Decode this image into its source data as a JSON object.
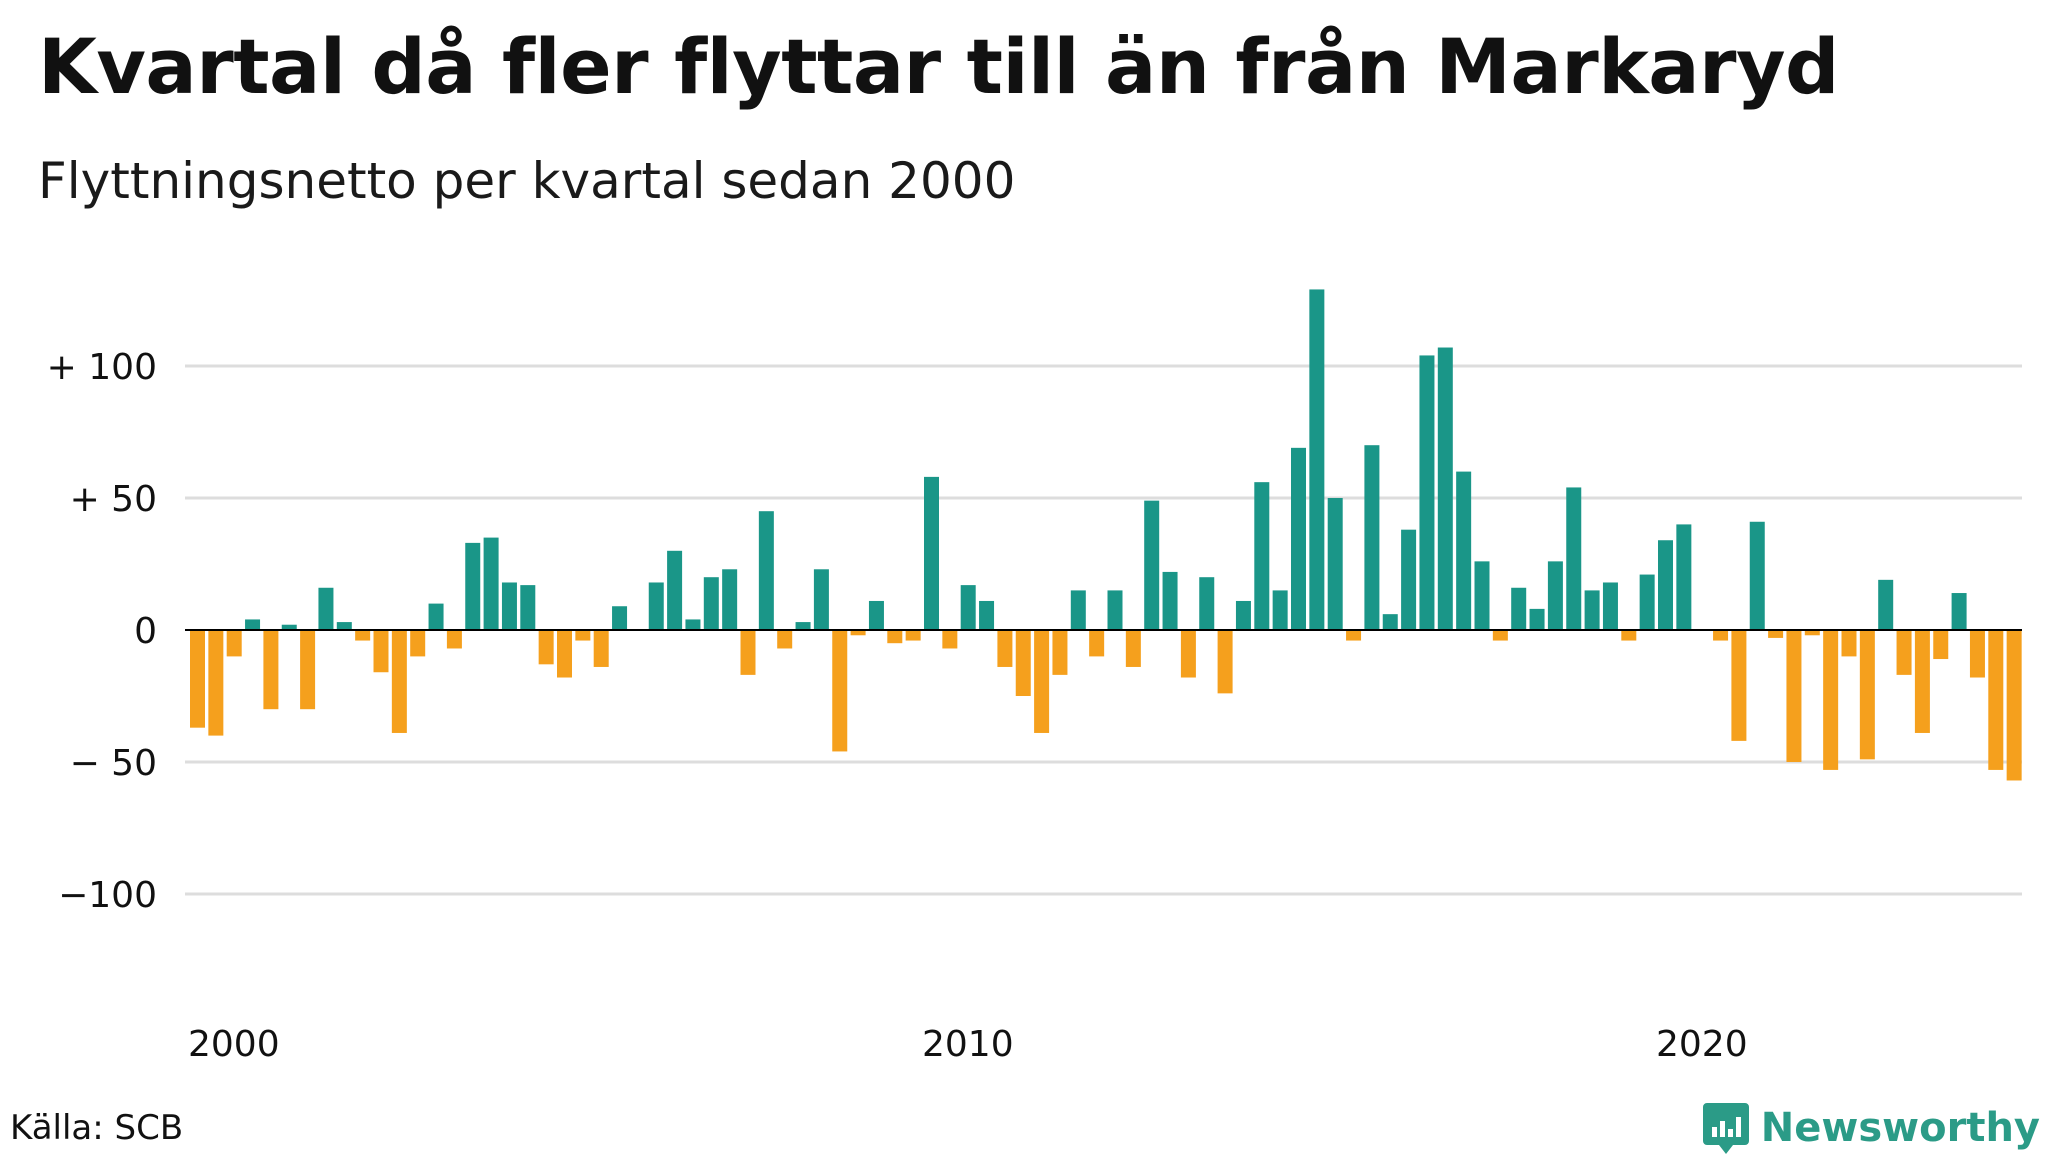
{
  "title": "Kvartal då fler flyttar till än från Markaryd",
  "subtitle": "Flyttningsnetto per kvartal sedan 2000",
  "source": "Källa: SCB",
  "brand": {
    "name": "Newsworthy",
    "icon": "newsworthy-logo-icon",
    "color": "#2b9b87"
  },
  "colors": {
    "positive": "#1a9688",
    "negative": "#f5a01d",
    "grid": "#dddddd",
    "zero": "#000000"
  },
  "chart_data": {
    "type": "bar",
    "x_start": "2000 Q1",
    "frequency": "quarterly",
    "ylim": [
      -120,
      130
    ],
    "yticks": [
      {
        "value": 100,
        "label": "+ 100"
      },
      {
        "value": 50,
        "label": "+  50"
      },
      {
        "value": 0,
        "label": "0"
      },
      {
        "value": -50,
        "label": "− 50"
      },
      {
        "value": -100,
        "label": "−100"
      }
    ],
    "xticks": [
      {
        "year": 2000,
        "label": "2000"
      },
      {
        "year": 2010,
        "label": "2010"
      },
      {
        "year": 2020,
        "label": "2020"
      }
    ],
    "values": [
      -37,
      -40,
      -10,
      4,
      -30,
      2,
      -30,
      16,
      3,
      -4,
      -16,
      -39,
      -10,
      10,
      -7,
      33,
      35,
      18,
      17,
      -13,
      -18,
      -4,
      -14,
      9,
      0,
      18,
      30,
      4,
      20,
      23,
      -17,
      45,
      -7,
      3,
      23,
      -46,
      -2,
      11,
      -5,
      -4,
      58,
      -7,
      17,
      11,
      -14,
      -25,
      -39,
      -17,
      15,
      -10,
      15,
      -14,
      49,
      22,
      -18,
      20,
      -24,
      11,
      56,
      15,
      69,
      129,
      50,
      -4,
      70,
      6,
      38,
      104,
      107,
      60,
      26,
      -4,
      16,
      8,
      26,
      54,
      15,
      18,
      -4,
      21,
      34,
      40,
      0,
      -4,
      -42,
      41,
      -3,
      -50,
      -2,
      -53,
      -10,
      -49,
      19,
      -17,
      -39,
      -11,
      14,
      -18,
      -53,
      -57
    ],
    "xlabel": "",
    "ylabel": ""
  }
}
